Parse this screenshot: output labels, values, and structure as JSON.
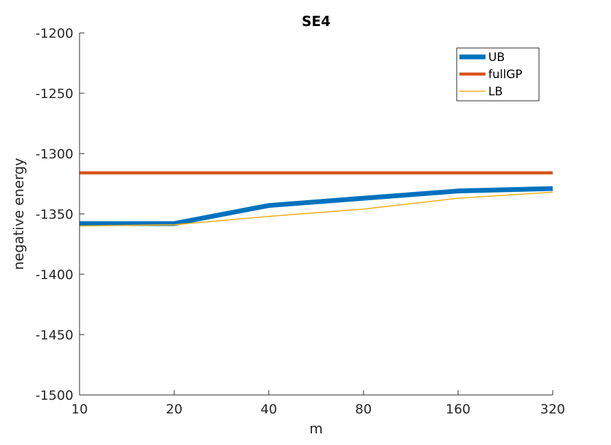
{
  "chart_data": {
    "type": "line",
    "title": "SE4",
    "xlabel": "m",
    "ylabel": "negative energy",
    "x_scale": "log2",
    "categories": [
      "10",
      "20",
      "40",
      "80",
      "160",
      "320"
    ],
    "x": [
      10,
      20,
      40,
      80,
      160,
      320
    ],
    "ylim": [
      -1500,
      -1200
    ],
    "yticks": [
      -1200,
      -1250,
      -1300,
      -1350,
      -1400,
      -1450,
      -1500
    ],
    "ytick_labels": [
      "-1200",
      "-1250",
      "-1300",
      "-1350",
      "-1400",
      "-1450",
      "-1500"
    ],
    "grid": false,
    "legend_position": "top-right",
    "series": [
      {
        "name": "UB",
        "color": "#0072BD",
        "values": [
          -1358,
          -1358,
          -1343,
          -1337,
          -1331,
          -1329
        ]
      },
      {
        "name": "fullGP",
        "color": "#D95319",
        "values": [
          -1316,
          -1316,
          -1316,
          -1316,
          -1316,
          -1316
        ]
      },
      {
        "name": "LB",
        "color": "#EDB120",
        "values": [
          -1360,
          -1359,
          -1352,
          -1346,
          -1337,
          -1332
        ]
      }
    ]
  }
}
